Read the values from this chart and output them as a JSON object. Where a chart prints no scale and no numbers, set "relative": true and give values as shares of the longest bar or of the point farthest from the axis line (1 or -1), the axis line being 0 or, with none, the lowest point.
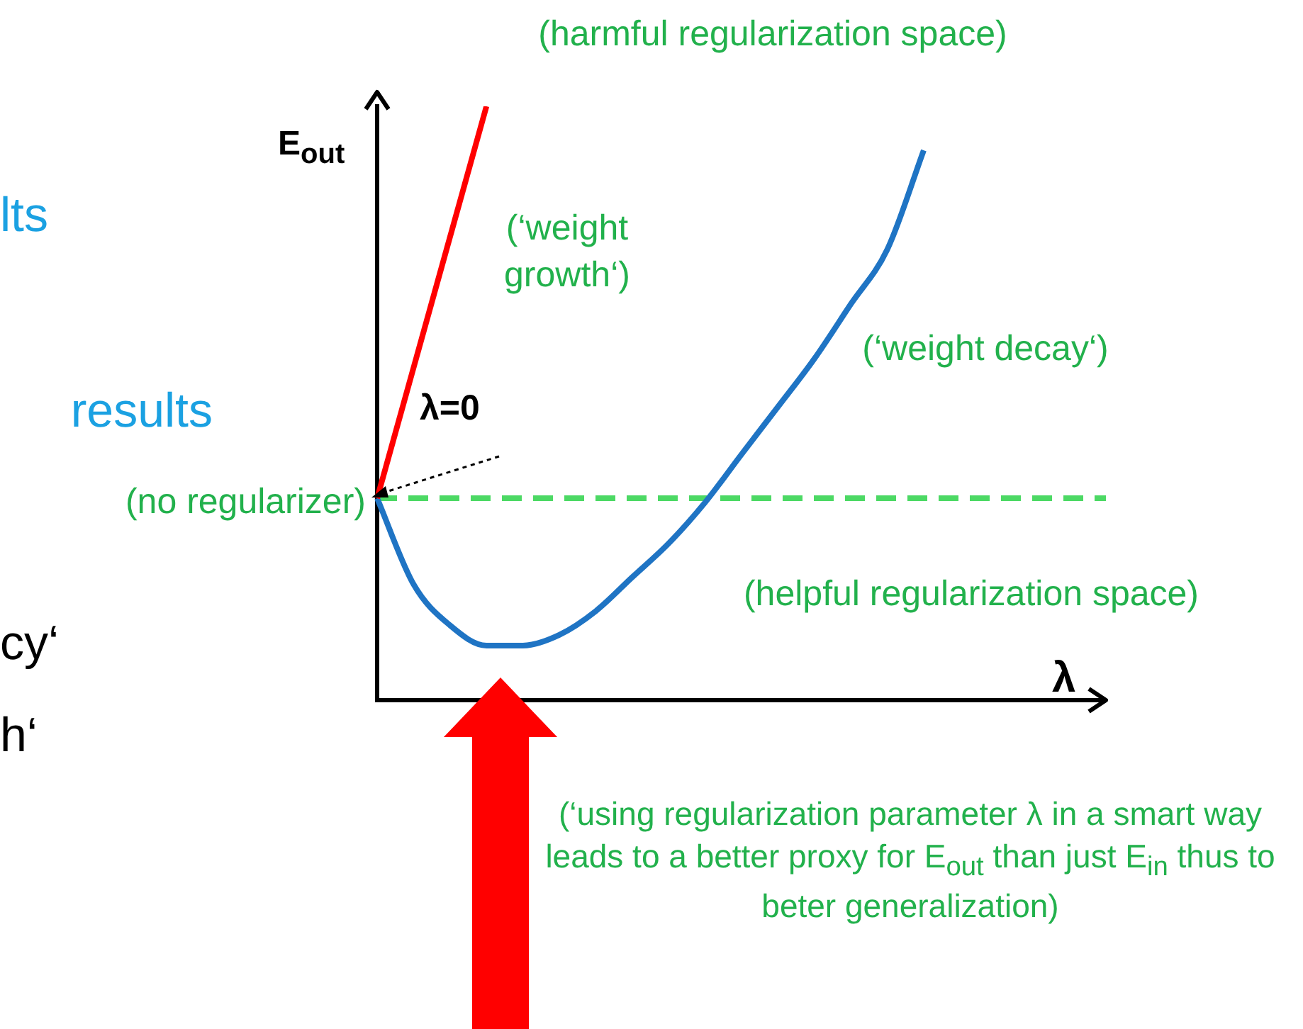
{
  "chart_data": {
    "type": "line",
    "relative": true,
    "xlabel": "λ",
    "ylabel": "E$_{out}$",
    "categories": [
      null,
      null,
      null,
      null,
      null,
      null,
      null,
      null,
      null,
      null,
      null,
      null,
      null,
      null,
      null,
      null,
      null,
      null,
      null,
      null,
      null
    ],
    "series": [
      {
        "color": "#ff0000",
        "values": [
          0.34,
          null,
          null,
          1,
          null,
          null,
          null,
          null,
          null,
          null,
          null,
          null,
          null,
          null,
          null,
          null,
          null,
          null,
          null,
          null,
          null
        ]
      },
      {
        "color": "#1f74c4",
        "values": [
          0.34,
          0.195,
          0.126,
          0.092,
          0.092,
          0.11,
          0.15,
          0.207,
          0.264,
          0.333,
          0.414,
          0.494,
          0.575,
          0.667,
          0.759,
          0.926,
          null,
          null,
          null,
          null,
          null
        ]
      },
      {
        "color": "#4cd964",
        "line_style": "dashed",
        "values": [
          0.34,
          0.34,
          0.34,
          0.34,
          0.34,
          0.34,
          0.34,
          0.34,
          0.34,
          0.34,
          0.34,
          0.34,
          0.34,
          0.34,
          0.34,
          0.34,
          0.34,
          0.34,
          0.34,
          0.34,
          0.34
        ]
      }
    ],
    "legend": false,
    "grid": false,
    "marker": "none",
    "annotations": [
      "(harmful regularization space)",
      "(‘weight growth‘)",
      "(‘weight decay‘)",
      "λ=0",
      "(no regularizer)",
      "(helpful regularization space)",
      "(‘using regularization parameter λ in a smart way leads to a better proxy for E$_{out}$  than just E$_{in}$ thus to beter generalization)",
      "lts",
      "results",
      "cy‘",
      "h‘"
    ]
  }
}
